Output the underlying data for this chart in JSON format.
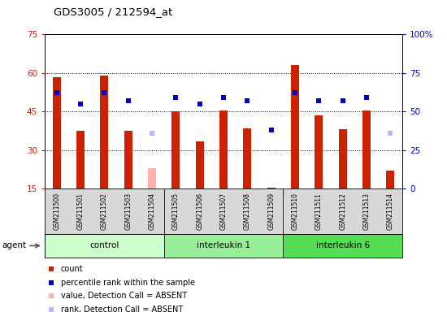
{
  "title": "GDS3005 / 212594_at",
  "samples": [
    "GSM211500",
    "GSM211501",
    "GSM211502",
    "GSM211503",
    "GSM211504",
    "GSM211505",
    "GSM211506",
    "GSM211507",
    "GSM211508",
    "GSM211509",
    "GSM211510",
    "GSM211511",
    "GSM211512",
    "GSM211513",
    "GSM211514"
  ],
  "count_values": [
    58.5,
    37.5,
    59.0,
    37.5,
    null,
    45.0,
    33.5,
    45.5,
    38.5,
    15.5,
    63.0,
    43.5,
    38.0,
    45.5,
    22.0
  ],
  "rank_values": [
    62.0,
    55.0,
    62.0,
    57.0,
    null,
    59.0,
    55.0,
    59.0,
    57.0,
    38.0,
    62.0,
    57.0,
    57.0,
    59.0,
    null
  ],
  "absent_count": [
    null,
    null,
    null,
    null,
    23.0,
    null,
    null,
    null,
    null,
    null,
    null,
    null,
    null,
    null,
    null
  ],
  "absent_rank": [
    null,
    null,
    null,
    null,
    36.0,
    null,
    null,
    null,
    null,
    null,
    null,
    null,
    null,
    null,
    null
  ],
  "absent_rank_only": [
    null,
    null,
    null,
    null,
    null,
    null,
    null,
    null,
    null,
    null,
    null,
    null,
    null,
    null,
    36.0
  ],
  "groups": [
    {
      "label": "control",
      "start": 0,
      "end": 5,
      "color": "#ccffcc"
    },
    {
      "label": "interleukin 1",
      "start": 5,
      "end": 10,
      "color": "#99ee99"
    },
    {
      "label": "interleukin 6",
      "start": 10,
      "end": 15,
      "color": "#55dd55"
    }
  ],
  "ylim_left": [
    15,
    75
  ],
  "ylim_right": [
    0,
    100
  ],
  "yticks_left": [
    15,
    30,
    45,
    60,
    75
  ],
  "yticks_right": [
    0,
    25,
    50,
    75,
    100
  ],
  "bar_color": "#cc2200",
  "dot_color": "#0000cc",
  "absent_bar_color": "#ffb0b0",
  "absent_dot_color": "#b8b8ff",
  "bar_width": 0.35,
  "dot_size": 22,
  "agent_label": "agent",
  "background_color": "#ffffff",
  "grid_vals": [
    30,
    45,
    60
  ],
  "legend_items": [
    {
      "color": "#cc2200",
      "label": "count"
    },
    {
      "color": "#0000cc",
      "label": "percentile rank within the sample"
    },
    {
      "color": "#ffb0b0",
      "label": "value, Detection Call = ABSENT"
    },
    {
      "color": "#b8b8ff",
      "label": "rank, Detection Call = ABSENT"
    }
  ]
}
